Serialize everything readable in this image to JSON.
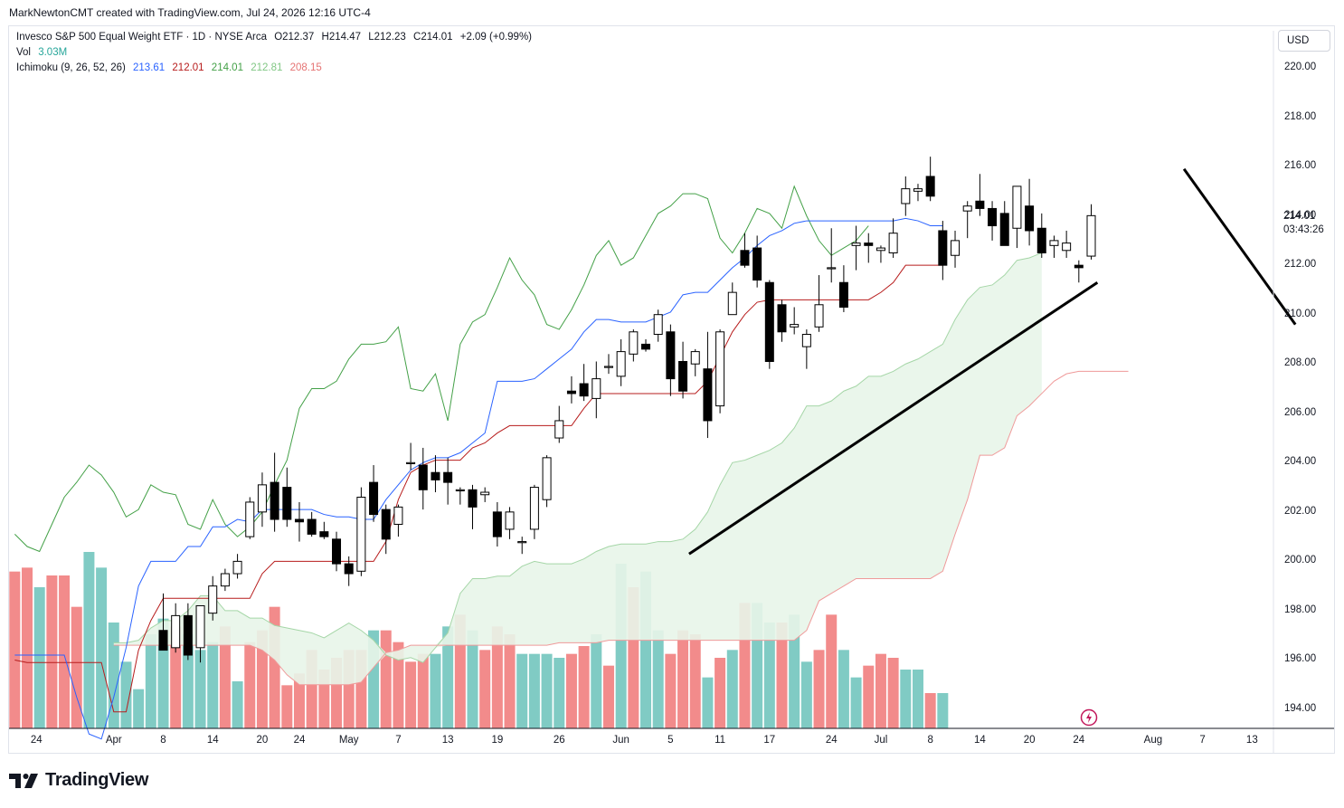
{
  "header": {
    "text": "MarkNewtonCMT created with TradingView.com, Jul 24, 2026 12:16 UTC-4"
  },
  "legend": {
    "symbol": "Invesco S&P 500 Equal Weight ETF · 1D · NYSE Arca",
    "ohlc": {
      "o_label": "O",
      "o": "212.37",
      "h_label": "H",
      "h": "214.47",
      "l_label": "L",
      "l": "212.23",
      "c_label": "C",
      "c": "214.01",
      "change": "+2.09 (+0.99%)"
    },
    "vol_label": "Vol",
    "vol_value": "3.03M",
    "ichimoku_label": "Ichimoku (9, 26, 52, 26)",
    "ichimoku_values": [
      "213.61",
      "212.01",
      "214.01",
      "212.81",
      "208.15"
    ]
  },
  "currency": "USD",
  "price_label": {
    "price": "214.01",
    "countdown": "03:43:26"
  },
  "branding": "TradingView",
  "colors": {
    "up_candle": "#ffffff",
    "down_candle": "#000000",
    "tenkan": "#2962ff",
    "kijun": "#b71c1c",
    "chikou": "#43a047",
    "span_a": "#a5d6a7",
    "span_b": "#ef9a9a",
    "cloud_fill": "#e8f5e9",
    "vol_up": "#80cbc4",
    "vol_down": "#f28b8b"
  },
  "chart_data": {
    "type": "candlestick",
    "y_ticks": [
      "220.00",
      "218.00",
      "216.00",
      "214.00",
      "212.00",
      "210.00",
      "208.00",
      "206.00",
      "204.00",
      "202.00",
      "200.00",
      "198.00",
      "196.00",
      "194.00"
    ],
    "x_ticks": [
      "24",
      "Apr",
      "8",
      "14",
      "20",
      "24",
      "May",
      "7",
      "13",
      "19",
      "26",
      "Jun",
      "5",
      "11",
      "17",
      "24",
      "Jul",
      "8",
      "14",
      "20",
      "24",
      "Aug",
      "7",
      "13"
    ],
    "ylim": [
      193.3,
      221.5
    ],
    "candles": [
      {
        "o": 197.2,
        "h": 198.7,
        "l": 196.4,
        "c": 196.4
      },
      {
        "o": 196.5,
        "h": 198.3,
        "l": 196.3,
        "c": 197.8
      },
      {
        "o": 197.8,
        "h": 198.3,
        "l": 196.0,
        "c": 196.2
      },
      {
        "o": 196.5,
        "h": 198.2,
        "l": 195.9,
        "c": 198.2
      },
      {
        "o": 197.9,
        "h": 199.4,
        "l": 197.6,
        "c": 199.0
      },
      {
        "o": 199.0,
        "h": 199.7,
        "l": 198.8,
        "c": 199.5
      },
      {
        "o": 199.5,
        "h": 200.3,
        "l": 199.3,
        "c": 200.0
      },
      {
        "o": 201.0,
        "h": 202.6,
        "l": 200.9,
        "c": 202.4
      },
      {
        "o": 202.0,
        "h": 203.6,
        "l": 201.4,
        "c": 203.1
      },
      {
        "o": 203.2,
        "h": 204.4,
        "l": 201.2,
        "c": 201.7
      },
      {
        "o": 203.0,
        "h": 203.8,
        "l": 201.4,
        "c": 201.7
      },
      {
        "o": 201.7,
        "h": 202.4,
        "l": 200.8,
        "c": 201.6
      },
      {
        "o": 201.7,
        "h": 202.0,
        "l": 201.0,
        "c": 201.1
      },
      {
        "o": 201.2,
        "h": 201.6,
        "l": 200.9,
        "c": 201.0
      },
      {
        "o": 200.9,
        "h": 201.2,
        "l": 199.6,
        "c": 199.9
      },
      {
        "o": 199.9,
        "h": 200.2,
        "l": 199.0,
        "c": 199.5
      },
      {
        "o": 199.6,
        "h": 203.0,
        "l": 199.4,
        "c": 202.6
      },
      {
        "o": 203.2,
        "h": 203.9,
        "l": 201.6,
        "c": 201.9
      },
      {
        "o": 202.1,
        "h": 202.3,
        "l": 200.3,
        "c": 200.9
      },
      {
        "o": 201.5,
        "h": 202.3,
        "l": 201.0,
        "c": 202.2
      },
      {
        "o": 204.0,
        "h": 204.8,
        "l": 203.7,
        "c": 204.0
      },
      {
        "o": 203.9,
        "h": 204.6,
        "l": 202.1,
        "c": 202.9
      },
      {
        "o": 203.6,
        "h": 204.3,
        "l": 202.8,
        "c": 203.3
      },
      {
        "o": 203.6,
        "h": 204.2,
        "l": 202.3,
        "c": 203.2
      },
      {
        "o": 202.9,
        "h": 203.0,
        "l": 202.3,
        "c": 202.9
      },
      {
        "o": 202.9,
        "h": 203.1,
        "l": 201.3,
        "c": 202.2
      },
      {
        "o": 202.7,
        "h": 203.0,
        "l": 202.4,
        "c": 202.8
      },
      {
        "o": 202.0,
        "h": 202.4,
        "l": 200.6,
        "c": 201.0
      },
      {
        "o": 201.3,
        "h": 202.2,
        "l": 200.9,
        "c": 202.0
      },
      {
        "o": 200.8,
        "h": 201.0,
        "l": 200.3,
        "c": 200.8
      },
      {
        "o": 201.3,
        "h": 203.1,
        "l": 200.9,
        "c": 203.0
      },
      {
        "o": 202.5,
        "h": 204.3,
        "l": 202.2,
        "c": 204.2
      },
      {
        "o": 205.0,
        "h": 206.3,
        "l": 204.8,
        "c": 205.7
      },
      {
        "o": 206.9,
        "h": 207.5,
        "l": 206.4,
        "c": 206.8
      },
      {
        "o": 207.2,
        "h": 208.0,
        "l": 206.5,
        "c": 206.7
      },
      {
        "o": 206.6,
        "h": 208.1,
        "l": 205.8,
        "c": 207.4
      },
      {
        "o": 207.9,
        "h": 208.4,
        "l": 207.6,
        "c": 207.9
      },
      {
        "o": 207.5,
        "h": 209.0,
        "l": 207.1,
        "c": 208.5
      },
      {
        "o": 208.4,
        "h": 209.4,
        "l": 208.1,
        "c": 209.3
      },
      {
        "o": 208.8,
        "h": 209.0,
        "l": 208.5,
        "c": 208.6
      },
      {
        "o": 209.2,
        "h": 210.2,
        "l": 208.9,
        "c": 210.0
      },
      {
        "o": 209.3,
        "h": 209.6,
        "l": 206.7,
        "c": 207.4
      },
      {
        "o": 208.1,
        "h": 208.9,
        "l": 206.6,
        "c": 206.9
      },
      {
        "o": 208.0,
        "h": 208.6,
        "l": 207.5,
        "c": 208.5
      },
      {
        "o": 207.8,
        "h": 209.3,
        "l": 205.0,
        "c": 205.7
      },
      {
        "o": 206.3,
        "h": 209.4,
        "l": 206.0,
        "c": 209.3
      },
      {
        "o": 210.0,
        "h": 211.3,
        "l": 210.0,
        "c": 210.9
      },
      {
        "o": 212.6,
        "h": 213.3,
        "l": 211.9,
        "c": 212.0
      },
      {
        "o": 212.7,
        "h": 213.2,
        "l": 211.1,
        "c": 211.4
      },
      {
        "o": 211.3,
        "h": 211.4,
        "l": 207.8,
        "c": 208.1
      },
      {
        "o": 210.4,
        "h": 210.6,
        "l": 208.9,
        "c": 209.3
      },
      {
        "o": 209.5,
        "h": 210.3,
        "l": 209.2,
        "c": 209.6
      },
      {
        "o": 208.7,
        "h": 209.4,
        "l": 207.8,
        "c": 209.2
      },
      {
        "o": 209.5,
        "h": 211.6,
        "l": 209.3,
        "c": 210.4
      },
      {
        "o": 211.9,
        "h": 213.5,
        "l": 211.3,
        "c": 211.9
      },
      {
        "o": 211.3,
        "h": 212.0,
        "l": 210.1,
        "c": 210.3
      },
      {
        "o": 212.8,
        "h": 213.6,
        "l": 211.8,
        "c": 212.9
      },
      {
        "o": 212.9,
        "h": 213.3,
        "l": 212.1,
        "c": 212.8
      },
      {
        "o": 212.6,
        "h": 212.8,
        "l": 212.1,
        "c": 212.7
      },
      {
        "o": 212.5,
        "h": 213.9,
        "l": 212.3,
        "c": 213.3
      },
      {
        "o": 214.5,
        "h": 215.6,
        "l": 214.0,
        "c": 215.1
      },
      {
        "o": 215.0,
        "h": 215.3,
        "l": 214.6,
        "c": 215.1
      },
      {
        "o": 215.6,
        "h": 216.4,
        "l": 214.6,
        "c": 214.8
      },
      {
        "o": 213.4,
        "h": 213.8,
        "l": 211.4,
        "c": 212.0
      },
      {
        "o": 212.4,
        "h": 213.4,
        "l": 211.9,
        "c": 213.0
      },
      {
        "o": 214.2,
        "h": 214.6,
        "l": 213.1,
        "c": 214.4
      },
      {
        "o": 214.6,
        "h": 215.7,
        "l": 214.0,
        "c": 214.3
      },
      {
        "o": 214.3,
        "h": 214.6,
        "l": 213.0,
        "c": 213.6
      },
      {
        "o": 214.1,
        "h": 214.6,
        "l": 212.9,
        "c": 212.8
      },
      {
        "o": 213.5,
        "h": 215.0,
        "l": 212.7,
        "c": 215.2
      },
      {
        "o": 214.4,
        "h": 215.5,
        "l": 212.8,
        "c": 213.4
      },
      {
        "o": 213.5,
        "h": 214.1,
        "l": 212.3,
        "c": 212.5
      },
      {
        "o": 212.8,
        "h": 213.2,
        "l": 212.3,
        "c": 213.0
      },
      {
        "o": 212.6,
        "h": 213.4,
        "l": 212.3,
        "c": 212.9
      },
      {
        "o": 212.0,
        "h": 212.2,
        "l": 211.3,
        "c": 211.9
      },
      {
        "o": 212.37,
        "h": 214.47,
        "l": 212.23,
        "c": 214.01
      }
    ],
    "volume": [
      {
        "v": 2.0,
        "up": false
      },
      {
        "v": 2.05,
        "up": false
      },
      {
        "v": 1.8,
        "up": true
      },
      {
        "v": 1.95,
        "up": false
      },
      {
        "v": 1.95,
        "up": false
      },
      {
        "v": 1.55,
        "up": false
      },
      {
        "v": 2.25,
        "up": true
      },
      {
        "v": 2.05,
        "up": true
      },
      {
        "v": 1.35,
        "up": true
      },
      {
        "v": 0.85,
        "up": true
      },
      {
        "v": 0.5,
        "up": true
      },
      {
        "v": 1.2,
        "up": true
      },
      {
        "v": 1.4,
        "up": true
      },
      {
        "v": 1.3,
        "up": false
      },
      {
        "v": 1.2,
        "up": true
      },
      {
        "v": 1.0,
        "up": true
      },
      {
        "v": 1.1,
        "up": true
      },
      {
        "v": 1.3,
        "up": false
      },
      {
        "v": 0.6,
        "up": true
      },
      {
        "v": 1.1,
        "up": false
      },
      {
        "v": 1.25,
        "up": false
      },
      {
        "v": 1.55,
        "up": false
      },
      {
        "v": 0.55,
        "up": false
      },
      {
        "v": 0.7,
        "up": false
      },
      {
        "v": 1.0,
        "up": false
      },
      {
        "v": 0.75,
        "up": false
      },
      {
        "v": 0.9,
        "up": false
      },
      {
        "v": 1.0,
        "up": false
      },
      {
        "v": 1.0,
        "up": false
      },
      {
        "v": 1.25,
        "up": true
      },
      {
        "v": 1.25,
        "up": false
      },
      {
        "v": 1.1,
        "up": false
      },
      {
        "v": 0.85,
        "up": false
      },
      {
        "v": 0.95,
        "up": false
      },
      {
        "v": 0.95,
        "up": true
      },
      {
        "v": 1.3,
        "up": true
      },
      {
        "v": 1.45,
        "up": false
      },
      {
        "v": 1.25,
        "up": true
      },
      {
        "v": 1.0,
        "up": false
      },
      {
        "v": 1.3,
        "up": false
      },
      {
        "v": 1.2,
        "up": false
      },
      {
        "v": 0.95,
        "up": true
      },
      {
        "v": 0.95,
        "up": true
      },
      {
        "v": 0.95,
        "up": true
      },
      {
        "v": 0.9,
        "up": true
      },
      {
        "v": 0.95,
        "up": false
      },
      {
        "v": 1.05,
        "up": false
      },
      {
        "v": 1.2,
        "up": true
      },
      {
        "v": 0.8,
        "up": false
      },
      {
        "v": 2.1,
        "up": true
      },
      {
        "v": 1.8,
        "up": false
      },
      {
        "v": 2.0,
        "up": true
      },
      {
        "v": 1.25,
        "up": true
      },
      {
        "v": 0.95,
        "up": false
      },
      {
        "v": 1.25,
        "up": false
      },
      {
        "v": 1.2,
        "up": false
      },
      {
        "v": 0.65,
        "up": true
      },
      {
        "v": 0.9,
        "up": false
      },
      {
        "v": 1.0,
        "up": true
      },
      {
        "v": 1.6,
        "up": false
      },
      {
        "v": 1.6,
        "up": true
      },
      {
        "v": 1.35,
        "up": true
      },
      {
        "v": 1.35,
        "up": false
      },
      {
        "v": 1.45,
        "up": true
      },
      {
        "v": 0.85,
        "up": true
      },
      {
        "v": 1.0,
        "up": false
      },
      {
        "v": 1.45,
        "up": false
      },
      {
        "v": 1.0,
        "up": true
      },
      {
        "v": 0.65,
        "up": true
      },
      {
        "v": 0.8,
        "up": false
      },
      {
        "v": 0.95,
        "up": false
      },
      {
        "v": 0.9,
        "up": false
      },
      {
        "v": 0.75,
        "up": true
      },
      {
        "v": 0.75,
        "up": true
      },
      {
        "v": 0.45,
        "up": false
      },
      {
        "v": 0.45,
        "up": true
      }
    ],
    "vol_max": 2.25,
    "tenkan": [
      196.2,
      196.2,
      196.2,
      196.2,
      196.2,
      194.5,
      193.0,
      192.8,
      194.5,
      196.5,
      199.0,
      200.0,
      200.0,
      200.0,
      200.6,
      200.6,
      201.4,
      201.4,
      201.7,
      201.6,
      202.1,
      202.1,
      202.1,
      202.1,
      202.1,
      201.9,
      201.8,
      201.8,
      201.7,
      201.7,
      202.5,
      203.1,
      203.7,
      204.0,
      204.2,
      204.2,
      204.4,
      204.8,
      205.2,
      207.3,
      207.3,
      207.3,
      207.4,
      207.8,
      208.2,
      208.6,
      209.3,
      209.8,
      209.8,
      209.7,
      209.7,
      209.7,
      209.9,
      210.1,
      210.8,
      210.9,
      210.9,
      211.4,
      211.9,
      212.3,
      212.8,
      213.2,
      213.4,
      213.7,
      213.8,
      213.8,
      213.8,
      213.8,
      213.8,
      213.8,
      213.8,
      213.8,
      213.9,
      213.8,
      213.6,
      213.6
    ],
    "kijun": [
      196.0,
      195.9,
      195.9,
      195.9,
      195.9,
      195.9,
      195.9,
      195.9,
      193.9,
      193.9,
      196.4,
      197.6,
      198.5,
      198.5,
      198.5,
      198.5,
      198.5,
      198.5,
      198.5,
      198.5,
      199.5,
      200.0,
      200.0,
      200.0,
      200.0,
      200.0,
      200.0,
      200.0,
      200.0,
      200.0,
      200.8,
      202.5,
      203.6,
      203.9,
      204.1,
      204.1,
      204.1,
      204.6,
      204.8,
      205.2,
      205.5,
      205.5,
      205.5,
      205.5,
      205.5,
      205.5,
      206.2,
      206.8,
      206.8,
      206.8,
      206.8,
      206.8,
      206.8,
      206.8,
      206.8,
      206.8,
      207.3,
      208.3,
      209.3,
      210.0,
      210.5,
      210.6,
      210.6,
      210.6,
      210.6,
      210.6,
      210.6,
      210.6,
      210.6,
      210.6,
      210.9,
      211.3,
      212.0,
      212.0,
      212.0,
      212.0
    ],
    "chikou": [
      201.1,
      200.6,
      200.4,
      201.5,
      202.6,
      203.2,
      203.9,
      203.5,
      202.8,
      201.8,
      202.1,
      203.1,
      202.8,
      202.7,
      201.5,
      201.3,
      202.5,
      201.5,
      201.0,
      201.4,
      202.0,
      203.1,
      204.1,
      206.2,
      207.0,
      207.0,
      207.3,
      208.2,
      208.8,
      208.8,
      208.9,
      209.5,
      207.0,
      206.9,
      207.6,
      205.7,
      208.8,
      209.7,
      210.0,
      211.1,
      212.3,
      211.4,
      210.8,
      209.6,
      209.4,
      210.2,
      211.2,
      212.4,
      213.0,
      212.0,
      212.3,
      213.2,
      214.1,
      214.4,
      214.9,
      214.9,
      214.7,
      213.1,
      212.5,
      213.3,
      214.3,
      214.1,
      213.5,
      215.2,
      214.0,
      213.0,
      212.4,
      212.7,
      213.0,
      213.6
    ],
    "span_a": [
      196.7,
      196.7,
      196.8,
      197.3,
      197.6,
      197.6,
      198.0,
      198.6,
      198.6,
      198.0,
      198.0,
      197.7,
      197.7,
      197.4,
      197.3,
      197.2,
      197.1,
      196.9,
      197.2,
      197.5,
      197.2,
      196.8,
      196.2,
      196.0,
      196.1,
      195.9,
      196.5,
      197.1,
      198.7,
      199.3,
      199.3,
      199.4,
      199.4,
      199.8,
      200.0,
      199.9,
      199.9,
      199.9,
      200.1,
      200.4,
      200.6,
      200.7,
      200.7,
      200.7,
      200.8,
      200.8,
      200.9,
      201.3,
      202.0,
      203.1,
      204.0,
      204.1,
      204.3,
      204.5,
      204.8,
      205.4,
      206.3,
      206.3,
      206.5,
      206.9,
      207.1,
      207.5,
      207.5,
      207.7,
      208.0,
      208.2,
      208.5,
      208.8,
      209.8,
      210.6,
      211.1,
      211.2,
      211.6,
      212.2,
      212.3,
      212.5
    ],
    "span_b": [
      196.6,
      196.6,
      196.6,
      196.6,
      196.6,
      196.6,
      196.6,
      196.6,
      196.6,
      196.6,
      196.6,
      196.6,
      196.4,
      196.0,
      195.4,
      195.0,
      195.0,
      195.0,
      195.0,
      195.0,
      195.1,
      195.7,
      196.3,
      196.4,
      196.6,
      196.6,
      196.6,
      196.6,
      196.6,
      196.6,
      196.6,
      196.6,
      196.6,
      196.6,
      196.6,
      196.6,
      196.7,
      196.7,
      196.7,
      196.7,
      196.8,
      196.8,
      196.8,
      196.8,
      196.8,
      196.8,
      196.8,
      196.8,
      196.8,
      196.8,
      196.8,
      196.8,
      196.8,
      196.8,
      196.8,
      196.8,
      197.2,
      198.4,
      198.7,
      199.0,
      199.3,
      199.3,
      199.3,
      199.3,
      199.3,
      199.3,
      199.3,
      199.6,
      201.1,
      202.5,
      204.3,
      204.3,
      204.6,
      205.9,
      206.3,
      206.8,
      207.3,
      207.6,
      207.7,
      207.7,
      207.7,
      207.7,
      207.7
    ],
    "cloud_start": -4,
    "trendlines": [
      {
        "x1": 42.5,
        "y1": 200.3,
        "x2": 75.5,
        "y2": 211.3
      },
      {
        "x1": 82.5,
        "y1": 215.9,
        "x2": 91.5,
        "y2": 209.6
      }
    ]
  }
}
